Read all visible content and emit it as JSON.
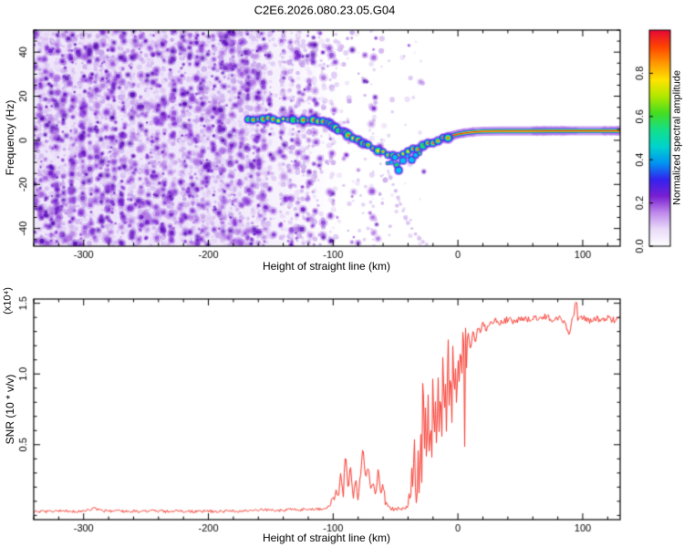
{
  "title": "C2E6.2026.080.23.05.G04",
  "chart_data": [
    {
      "type": "heatmap",
      "name": "doppler-spectrogram",
      "title": "C2E6.2026.080.23.05.G04",
      "xlabel": "Height of straight line (km)",
      "ylabel": "Frequency (Hz)",
      "xlim": [
        -340,
        130
      ],
      "ylim": [
        -48,
        50
      ],
      "xticks": [
        -300,
        -200,
        -100,
        0,
        100
      ],
      "xtick_labels": [
        "-300",
        "-200",
        "-100",
        "0",
        "100"
      ],
      "x_minor_step": 20,
      "yticks": [
        -40,
        -20,
        0,
        20,
        40
      ],
      "ytick_labels": [
        "-40",
        "-20",
        "0",
        "20",
        "40"
      ],
      "y_minor_step": 5,
      "colorbar": {
        "label": "Normalized spectral amplitude",
        "range": [
          0,
          1
        ],
        "ticks": [
          0.0,
          0.2,
          0.4,
          0.6,
          0.8
        ],
        "tick_labels": [
          "0.0",
          "0.2",
          "0.4",
          "0.6",
          "0.8"
        ],
        "colors": [
          "#ffffff",
          "#eadcf9",
          "#c08aec",
          "#7a1fd2",
          "#3422ee",
          "#0095f2",
          "#00d4cc",
          "#14e08a",
          "#44dd22",
          "#b0e800",
          "#ffe400",
          "#ff9800",
          "#ff4400",
          "#e60638"
        ]
      },
      "background_noise": {
        "description": "dense purple speckle noise at low heights fading out above -60 km",
        "regions": [
          {
            "km": [
              -340,
              -150
            ],
            "density": 1.0
          },
          {
            "km": [
              -150,
              -143
            ],
            "density": 0.15
          },
          {
            "km": [
              -143,
              -114
            ],
            "density": 0.55
          },
          {
            "km": [
              -114,
              -95
            ],
            "density": 0.3
          },
          {
            "km": [
              -95,
              -55
            ],
            "density": 0.1
          },
          {
            "km": [
              -55,
              -25
            ],
            "density": 0.04
          },
          {
            "km": [
              -25,
              130
            ],
            "density": 0.0
          }
        ],
        "extra_streaks": [
          {
            "km": [
              -72,
              -61
            ],
            "density": 0.2
          }
        ]
      },
      "trace": {
        "description": "high-amplitude echo trace, [height_km, frequency_hz, amplitude]",
        "blob_end_km": -4,
        "line_start_km": -12,
        "points": [
          [
            -168,
            9.5,
            0.75
          ],
          [
            -164,
            9.8,
            0.9
          ],
          [
            -160,
            9.6,
            0.85
          ],
          [
            -156,
            10.0,
            0.95
          ],
          [
            -152,
            9.7,
            0.8
          ],
          [
            -148,
            9.4,
            0.9
          ],
          [
            -144,
            9.2,
            0.7
          ],
          [
            -140,
            9.6,
            0.85
          ],
          [
            -136,
            9.8,
            0.9
          ],
          [
            -132,
            9.4,
            0.8
          ],
          [
            -128,
            9.2,
            0.85
          ],
          [
            -124,
            9.5,
            0.9
          ],
          [
            -120,
            9.3,
            0.8
          ],
          [
            -116,
            9.1,
            0.85
          ],
          [
            -112,
            9.0,
            0.9
          ],
          [
            -108,
            8.6,
            0.85
          ],
          [
            -104,
            7.6,
            0.8
          ],
          [
            -100,
            6.3,
            0.85
          ],
          [
            -96,
            5.0,
            0.9
          ],
          [
            -92,
            3.8,
            0.85
          ],
          [
            -88,
            2.4,
            0.9
          ],
          [
            -84,
            1.2,
            0.85
          ],
          [
            -80,
            0.0,
            0.8
          ],
          [
            -76,
            -1.4,
            0.85
          ],
          [
            -72,
            -2.7,
            0.9
          ],
          [
            -68,
            -3.9,
            0.85
          ],
          [
            -64,
            -4.9,
            0.9
          ],
          [
            -60,
            -5.7,
            0.85
          ],
          [
            -56,
            -6.2,
            0.8
          ],
          [
            -52,
            -6.6,
            0.85
          ],
          [
            -48,
            -6.5,
            0.8
          ],
          [
            -44,
            -6.1,
            0.8
          ],
          [
            -40,
            -5.3,
            0.85
          ],
          [
            -36,
            -4.4,
            0.8
          ],
          [
            -32,
            -3.5,
            0.8
          ],
          [
            -28,
            -2.6,
            0.8
          ],
          [
            -24,
            -1.7,
            0.8
          ],
          [
            -20,
            -0.9,
            0.8
          ],
          [
            -16,
            -0.2,
            0.8
          ],
          [
            -12,
            0.7,
            0.8
          ],
          [
            -8,
            1.5,
            0.85
          ],
          [
            -4,
            2.2,
            0.9
          ],
          [
            0,
            2.8,
            0.9
          ],
          [
            6,
            3.4,
            0.9
          ],
          [
            12,
            3.8,
            0.92
          ],
          [
            20,
            4.1,
            0.94
          ],
          [
            35,
            4.2,
            0.95
          ],
          [
            55,
            4.2,
            0.95
          ],
          [
            75,
            4.3,
            0.95
          ],
          [
            95,
            4.3,
            0.95
          ],
          [
            115,
            4.3,
            0.92
          ],
          [
            130,
            4.3,
            0.9
          ]
        ],
        "fuzz_patches_km": [
          [
            -6,
            14
          ],
          [
            60,
            96
          ],
          [
            116,
            130
          ]
        ],
        "outlier_blobs": [
          [
            -50.5,
            -7.8
          ],
          [
            -49,
            -11.2
          ],
          [
            -47.5,
            -13.6
          ],
          [
            -44,
            -9.2
          ],
          [
            -37,
            -8.8
          ],
          [
            -34,
            -6.8
          ]
        ],
        "chirp_trail": [
          [
            -56,
            -14
          ],
          [
            -54,
            -17
          ],
          [
            -52,
            -20
          ],
          [
            -50,
            -23
          ],
          [
            -48,
            -26
          ],
          [
            -46,
            -29
          ],
          [
            -44,
            -32
          ],
          [
            -42,
            -35
          ],
          [
            -40,
            -37.5
          ],
          [
            -37,
            -40
          ],
          [
            -34,
            -42.5
          ],
          [
            -31,
            -44.5
          ],
          [
            -28,
            -46
          ],
          [
            -25,
            -47
          ]
        ],
        "scatter_dots": [
          [
            -80,
            -18
          ],
          [
            -78,
            -25
          ],
          [
            -76,
            -33
          ],
          [
            -74,
            -21
          ],
          [
            -72,
            -40
          ],
          [
            -70,
            -28
          ],
          [
            -68,
            -45
          ],
          [
            -66,
            -36
          ],
          [
            -79,
            -41
          ],
          [
            -75,
            -45
          ]
        ]
      }
    },
    {
      "type": "line",
      "name": "snr-profile",
      "xlabel": "Height of straight line (km)",
      "ylabel": "SNR (10 * v/v)",
      "scale_label": "(x10⁴)",
      "xlim": [
        -340,
        130
      ],
      "ylim": [
        -0.03,
        1.53
      ],
      "xticks": [
        -300,
        -200,
        -100,
        0,
        100
      ],
      "xtick_labels": [
        "-300",
        "-200",
        "-100",
        "0",
        "100"
      ],
      "x_minor_step": 20,
      "yticks": [
        0.5,
        1.0,
        1.5
      ],
      "ytick_labels": [
        "0.5",
        "1.0",
        "1.5"
      ],
      "y_minor_step": 0.1,
      "line_color": "#f5372d",
      "points": [
        [
          -340,
          0.03
        ],
        [
          -330,
          0.028
        ],
        [
          -320,
          0.032
        ],
        [
          -310,
          0.028
        ],
        [
          -300,
          0.03
        ],
        [
          -292,
          0.05
        ],
        [
          -288,
          0.042
        ],
        [
          -284,
          0.032
        ],
        [
          -275,
          0.028
        ],
        [
          -265,
          0.03
        ],
        [
          -255,
          0.028
        ],
        [
          -245,
          0.032
        ],
        [
          -235,
          0.028
        ],
        [
          -225,
          0.03
        ],
        [
          -215,
          0.028
        ],
        [
          -205,
          0.03
        ],
        [
          -195,
          0.028
        ],
        [
          -185,
          0.032
        ],
        [
          -175,
          0.03
        ],
        [
          -165,
          0.035
        ],
        [
          -158,
          0.045
        ],
        [
          -152,
          0.038
        ],
        [
          -146,
          0.032
        ],
        [
          -140,
          0.036
        ],
        [
          -134,
          0.042
        ],
        [
          -128,
          0.036
        ],
        [
          -122,
          0.048
        ],
        [
          -116,
          0.04
        ],
        [
          -110,
          0.046
        ],
        [
          -105,
          0.055
        ],
        [
          -100,
          0.09
        ],
        [
          -98,
          0.16
        ],
        [
          -96,
          0.1
        ],
        [
          -94,
          0.28
        ],
        [
          -92,
          0.14
        ],
        [
          -90,
          0.44
        ],
        [
          -88,
          0.2
        ],
        [
          -86,
          0.34
        ],
        [
          -84,
          0.14
        ],
        [
          -82,
          0.26
        ],
        [
          -80,
          0.12
        ],
        [
          -78,
          0.3
        ],
        [
          -76,
          0.47
        ],
        [
          -74,
          0.22
        ],
        [
          -72,
          0.34
        ],
        [
          -70,
          0.16
        ],
        [
          -68,
          0.27
        ],
        [
          -66,
          0.12
        ],
        [
          -64,
          0.33
        ],
        [
          -62,
          0.14
        ],
        [
          -60,
          0.2
        ],
        [
          -58,
          0.09
        ],
        [
          -55,
          0.055
        ],
        [
          -51,
          0.042
        ],
        [
          -47,
          0.052
        ],
        [
          -43,
          0.045
        ],
        [
          -40,
          0.06
        ],
        [
          -38,
          0.14
        ],
        [
          -37,
          0.32
        ],
        [
          -36,
          0.1
        ],
        [
          -35,
          0.58
        ],
        [
          -34,
          0.22
        ],
        [
          -33,
          0.09
        ],
        [
          -32,
          0.48
        ],
        [
          -31,
          0.16
        ],
        [
          -30,
          0.62
        ],
        [
          -29,
          0.26
        ],
        [
          -28,
          1.18
        ],
        [
          -27,
          0.32
        ],
        [
          -26,
          0.72
        ],
        [
          -25,
          0.28
        ],
        [
          -24,
          0.96
        ],
        [
          -23,
          0.42
        ],
        [
          -22,
          0.66
        ],
        [
          -21,
          0.32
        ],
        [
          -20,
          1.06
        ],
        [
          -19,
          0.46
        ],
        [
          -18,
          0.82
        ],
        [
          -17,
          0.36
        ],
        [
          -16,
          1.1
        ],
        [
          -15,
          0.56
        ],
        [
          -14,
          0.86
        ],
        [
          -13,
          0.46
        ],
        [
          -12,
          1.22
        ],
        [
          -11,
          0.62
        ],
        [
          -10,
          0.96
        ],
        [
          -9,
          0.52
        ],
        [
          -8,
          1.3
        ],
        [
          -7,
          0.72
        ],
        [
          -6,
          1.06
        ],
        [
          -5,
          0.62
        ],
        [
          -4,
          1.26
        ],
        [
          -3,
          0.82
        ],
        [
          -2,
          1.12
        ],
        [
          -1,
          0.76
        ],
        [
          0,
          1.2
        ],
        [
          1,
          0.92
        ],
        [
          2,
          1.26
        ],
        [
          3,
          1.02
        ],
        [
          4,
          1.3
        ],
        [
          5,
          1.12
        ],
        [
          6,
          1.28
        ],
        [
          7,
          1.06
        ],
        [
          8,
          1.32
        ],
        [
          10,
          1.16
        ],
        [
          12,
          1.3
        ],
        [
          14,
          1.24
        ],
        [
          16,
          1.33
        ],
        [
          18,
          1.28
        ],
        [
          20,
          1.35
        ],
        [
          23,
          1.32
        ],
        [
          26,
          1.37
        ],
        [
          30,
          1.38
        ],
        [
          35,
          1.36
        ],
        [
          40,
          1.39
        ],
        [
          45,
          1.37
        ],
        [
          50,
          1.4
        ],
        [
          55,
          1.38
        ],
        [
          60,
          1.4
        ],
        [
          65,
          1.39
        ],
        [
          70,
          1.41
        ],
        [
          75,
          1.38
        ],
        [
          80,
          1.4
        ],
        [
          84,
          1.39
        ],
        [
          87,
          1.33
        ],
        [
          89,
          1.26
        ],
        [
          91,
          1.36
        ],
        [
          93,
          1.43
        ],
        [
          95,
          1.53
        ],
        [
          96,
          1.36
        ],
        [
          98,
          1.4
        ],
        [
          102,
          1.39
        ],
        [
          106,
          1.38
        ],
        [
          110,
          1.4
        ],
        [
          115,
          1.38
        ],
        [
          120,
          1.4
        ],
        [
          125,
          1.38
        ],
        [
          130,
          1.39
        ]
      ]
    }
  ]
}
